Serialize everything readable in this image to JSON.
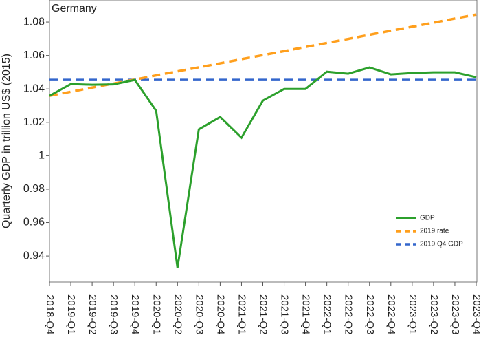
{
  "chart_data": {
    "type": "line",
    "title": "Germany",
    "y_label": "Quarterly GDP in trillion US$ (2015)",
    "categories": [
      "2018-Q4",
      "2019-Q1",
      "2019-Q2",
      "2019-Q3",
      "2019-Q4",
      "2020-Q1",
      "2020-Q2",
      "2020-Q3",
      "2020-Q4",
      "2021-Q1",
      "2021-Q2",
      "2021-Q3",
      "2021-Q4",
      "2022-Q1",
      "2022-Q2",
      "2022-Q3",
      "2022-Q4",
      "2023-Q1",
      "2023-Q2",
      "2023-Q3",
      "2023-Q4"
    ],
    "series": [
      {
        "name": "GDP",
        "color": "#2ca02c",
        "linestyle": "solid",
        "values": [
          1.0359,
          1.0429,
          1.0425,
          1.0427,
          1.0454,
          1.0269,
          0.933,
          1.0158,
          1.0232,
          1.0108,
          1.033,
          1.04,
          1.04,
          1.0503,
          1.0491,
          1.0528,
          1.0487,
          1.0495,
          1.0499,
          1.0499,
          1.047
        ]
      },
      {
        "name": "2019 rate",
        "color": "#ff9f1c",
        "linestyle": "dashed",
        "values": [
          1.0359,
          1.0383,
          1.0408,
          1.0432,
          1.0456,
          1.0481,
          1.0505,
          1.0529,
          1.0553,
          1.0578,
          1.0602,
          1.0626,
          1.0651,
          1.0675,
          1.0699,
          1.0724,
          1.0748,
          1.0772,
          1.0796,
          1.0821,
          1.0845
        ]
      },
      {
        "name": "2019 Q4 GDP",
        "color": "#3366cc",
        "linestyle": "dashed",
        "values": [
          1.0454,
          1.0454,
          1.0454,
          1.0454,
          1.0454,
          1.0454,
          1.0454,
          1.0454,
          1.0454,
          1.0454,
          1.0454,
          1.0454,
          1.0454,
          1.0454,
          1.0454,
          1.0454,
          1.0454,
          1.0454,
          1.0454,
          1.0454,
          1.0454
        ]
      }
    ],
    "ylim": [
      0.9244,
      1.0932
    ],
    "yticks": [
      0.94,
      0.96,
      0.98,
      1,
      1.02,
      1.04,
      1.06,
      1.08
    ],
    "grid": false,
    "legend": "lower right"
  }
}
